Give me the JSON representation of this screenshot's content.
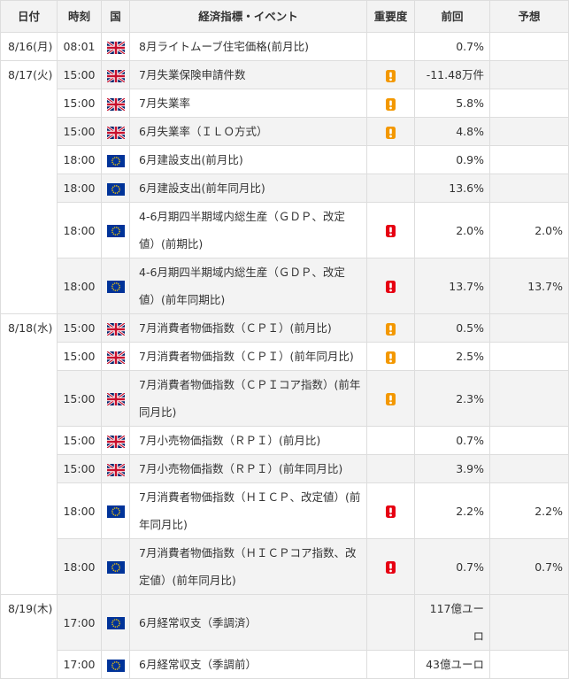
{
  "table": {
    "header": [
      "日付",
      "時刻",
      "国",
      "経済指標・イベント",
      "重要度",
      "前回",
      "予想"
    ],
    "groups": [
      {
        "date": "8/16(月)",
        "rows": [
          {
            "time": "08:01",
            "event": "8月ライトムーブ住宅価格(前月比)",
            "previous": "0.7%"
          }
        ]
      },
      {
        "date": "8/17(火)",
        "rows": [
          {
            "time": "15:00",
            "event": "7月失業保険申請件数",
            "previous": "-11.48万件"
          },
          {
            "time": "15:00",
            "event": "7月失業率",
            "previous": "5.8%"
          },
          {
            "time": "15:00",
            "event": "6月失業率（ＩＬＯ方式）",
            "previous": "4.8%"
          },
          {
            "time": "18:00",
            "event": "6月建設支出(前月比)",
            "previous": "0.9%"
          },
          {
            "time": "18:00",
            "event": "6月建設支出(前年同月比)",
            "previous": "13.6%"
          },
          {
            "time": "18:00",
            "event": "4-6月期四半期域内総生産（ＧＤＰ、改定値）(前期比)",
            "previous": "2.0%",
            "forecast": "2.0%"
          },
          {
            "time": "18:00",
            "event": "4-6月期四半期域内総生産（ＧＤＰ、改定値）(前年同期比)",
            "previous": "13.7%",
            "forecast": "13.7%"
          }
        ]
      },
      {
        "date": "8/18(水)",
        "rows": [
          {
            "time": "15:00",
            "event": "7月消費者物価指数（ＣＰＩ）(前月比)",
            "previous": "0.5%"
          },
          {
            "time": "15:00",
            "event": "7月消費者物価指数（ＣＰＩ）(前年同月比)",
            "previous": "2.5%"
          },
          {
            "time": "15:00",
            "event": "7月消費者物価指数（ＣＰＩコア指数）(前年同月比)",
            "previous": "2.3%"
          },
          {
            "time": "15:00",
            "event": "7月小売物価指数（ＲＰＩ）(前月比)",
            "previous": "0.7%"
          },
          {
            "time": "15:00",
            "event": "7月小売物価指数（ＲＰＩ）(前年同月比)",
            "previous": "3.9%"
          },
          {
            "time": "18:00",
            "event": "7月消費者物価指数（ＨＩＣＰ、改定値）(前年同月比)",
            "previous": "2.2%",
            "forecast": "2.2%"
          },
          {
            "time": "18:00",
            "event": "7月消費者物価指数（ＨＩＣＰコア指数、改定値）(前年同月比)",
            "previous": "0.7%",
            "forecast": "0.7%"
          }
        ]
      },
      {
        "date": "8/19(木)",
        "rows": [
          {
            "time": "17:00",
            "event": "6月経常収支（季調済）",
            "previous": "117億ユーロ"
          },
          {
            "time": "17:00",
            "event": "6月経常収支（季調前）",
            "previous": "43億ユーロ"
          }
        ]
      }
    ]
  }
}
